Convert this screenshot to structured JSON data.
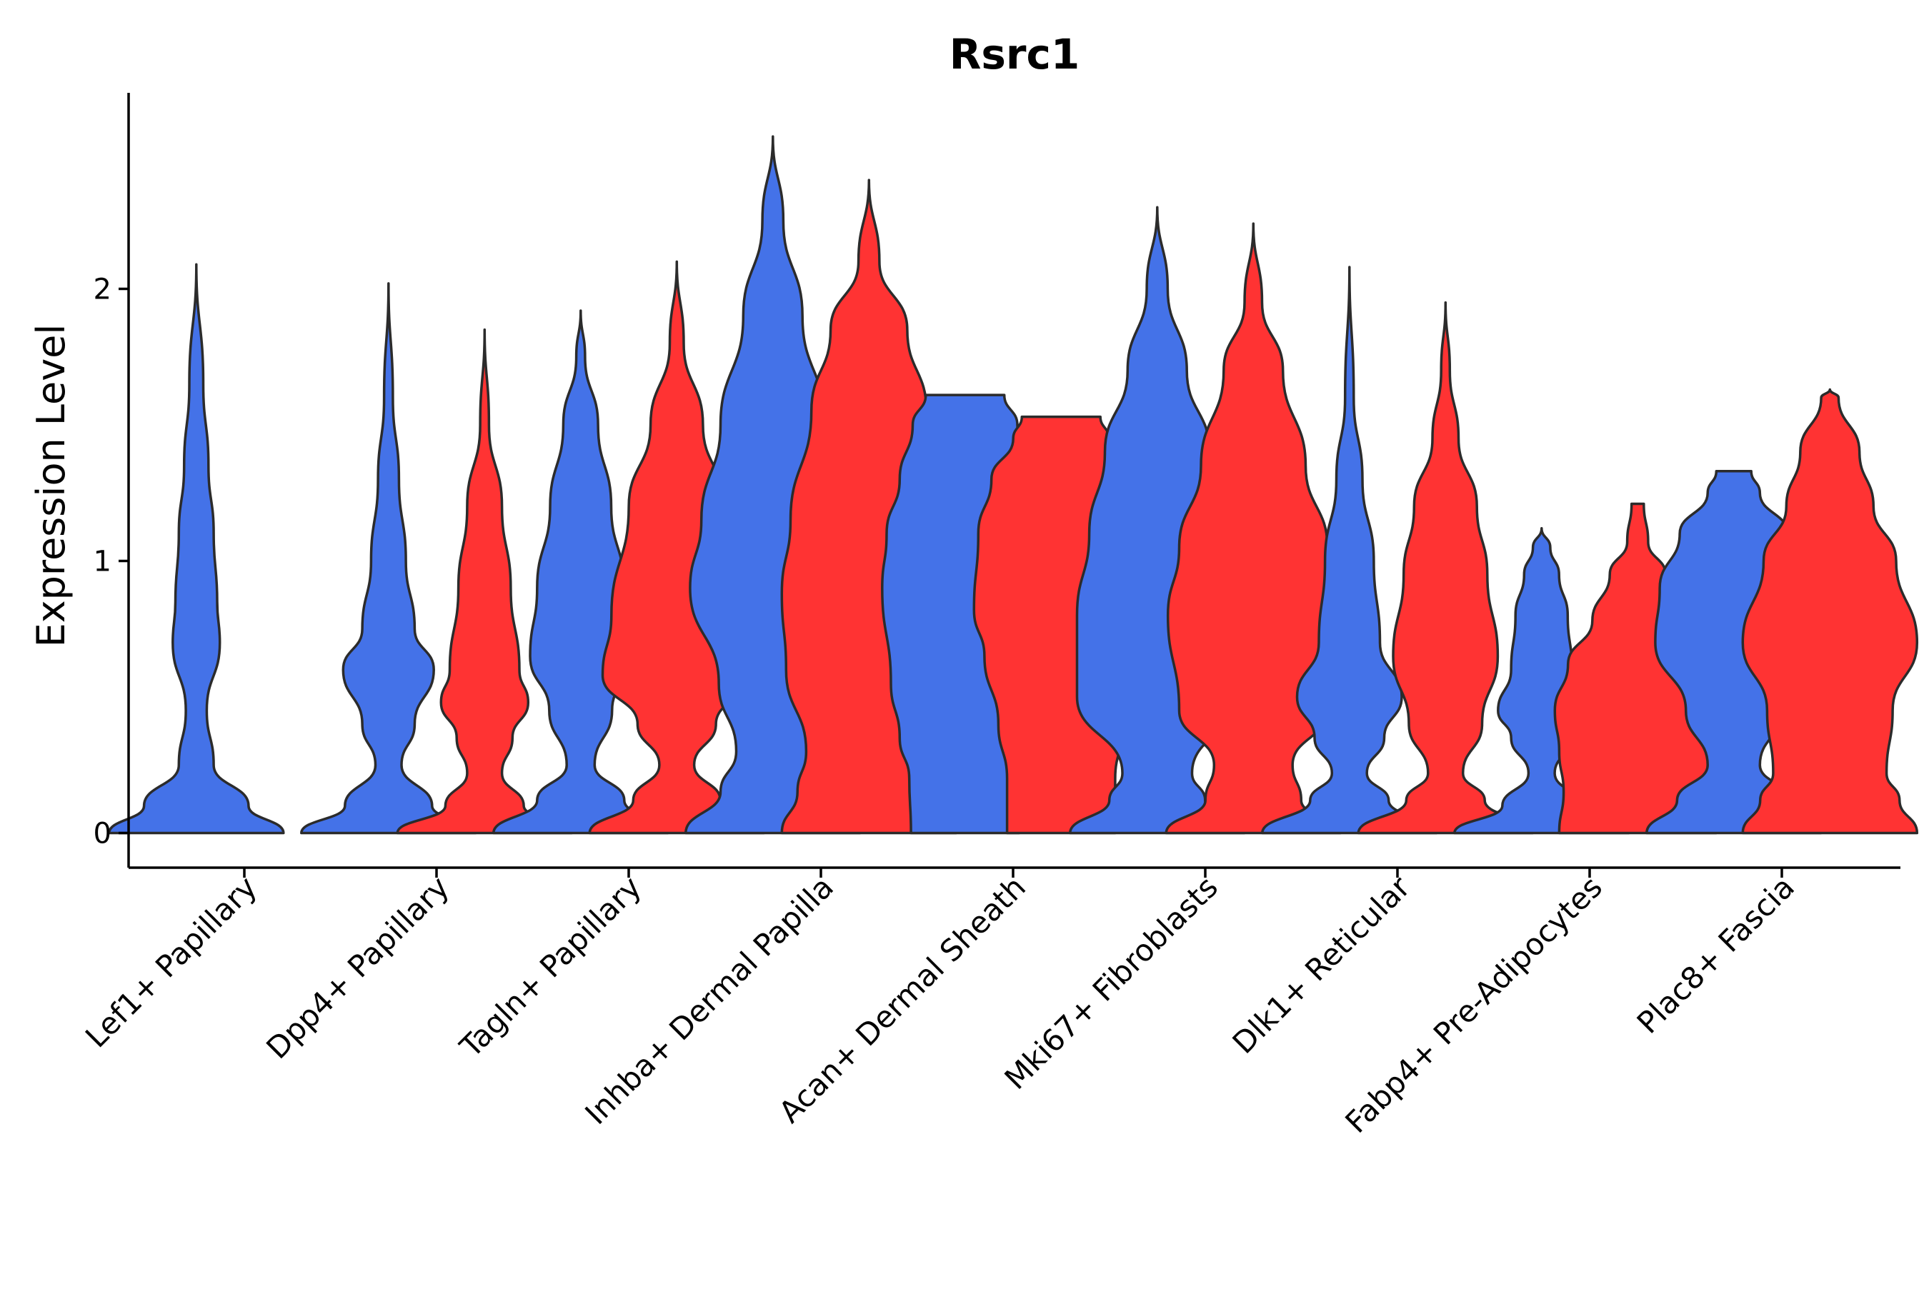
{
  "chart_data": {
    "type": "violin",
    "title": "Rsrc1",
    "xlabel": "",
    "ylabel": "Expression Level",
    "ylim": [
      -0.13,
      2.7
    ],
    "yticks": [
      0,
      1,
      2
    ],
    "grid": false,
    "legend": "none",
    "colors": {
      "group_1": "#4472E8",
      "group_2": "#FF3333",
      "outline": "#2b2b2b"
    },
    "categories": [
      "Lef1+ Papillary",
      "Dpp4+ Papillary",
      "Tagln+ Papillary",
      "Inhba+ Dermal Papilla",
      "Acan+ Dermal Sheath",
      "Mki67+ Fibroblasts",
      "Dlk1+ Reticular",
      "Fabp4+ Pre-Adipocytes",
      "Plac8+ Fascia"
    ],
    "violins": [
      {
        "category": "Lef1+ Papillary",
        "group": 1,
        "max": 2.09,
        "profile": [
          [
            0,
            1.0
          ],
          [
            0.1,
            0.6
          ],
          [
            0.25,
            0.2
          ],
          [
            0.45,
            0.12
          ],
          [
            0.7,
            0.27
          ],
          [
            0.85,
            0.24
          ],
          [
            1.1,
            0.2
          ],
          [
            1.35,
            0.14
          ],
          [
            1.65,
            0.08
          ],
          [
            2.09,
            0.0
          ]
        ]
      },
      {
        "category": "Dpp4+ Papillary",
        "group": 1,
        "max": 2.02,
        "profile": [
          [
            0,
            1.0
          ],
          [
            0.1,
            0.5
          ],
          [
            0.25,
            0.15
          ],
          [
            0.4,
            0.3
          ],
          [
            0.6,
            0.52
          ],
          [
            0.75,
            0.3
          ],
          [
            1.0,
            0.2
          ],
          [
            1.3,
            0.12
          ],
          [
            1.6,
            0.05
          ],
          [
            2.02,
            0.0
          ]
        ]
      },
      {
        "category": "Dpp4+ Papillary",
        "group": 2,
        "max": 1.85,
        "profile": [
          [
            0,
            1.0
          ],
          [
            0.1,
            0.45
          ],
          [
            0.22,
            0.2
          ],
          [
            0.35,
            0.32
          ],
          [
            0.48,
            0.5
          ],
          [
            0.6,
            0.4
          ],
          [
            0.9,
            0.3
          ],
          [
            1.2,
            0.2
          ],
          [
            1.5,
            0.05
          ],
          [
            1.85,
            0.0
          ]
        ]
      },
      {
        "category": "Tagln+ Papillary",
        "group": 1,
        "max": 1.92,
        "profile": [
          [
            0,
            1.0
          ],
          [
            0.12,
            0.5
          ],
          [
            0.25,
            0.16
          ],
          [
            0.45,
            0.36
          ],
          [
            0.65,
            0.58
          ],
          [
            0.9,
            0.5
          ],
          [
            1.2,
            0.35
          ],
          [
            1.5,
            0.2
          ],
          [
            1.75,
            0.05
          ],
          [
            1.92,
            0.0
          ]
        ]
      },
      {
        "category": "Tagln+ Papillary",
        "group": 2,
        "max": 2.1,
        "profile": [
          [
            0,
            1.0
          ],
          [
            0.12,
            0.5
          ],
          [
            0.25,
            0.2
          ],
          [
            0.4,
            0.45
          ],
          [
            0.58,
            0.85
          ],
          [
            0.8,
            0.75
          ],
          [
            1.2,
            0.55
          ],
          [
            1.5,
            0.3
          ],
          [
            1.8,
            0.08
          ],
          [
            2.1,
            0.0
          ]
        ]
      },
      {
        "category": "Inhba+ Dermal Papilla",
        "group": 1,
        "max": 2.56,
        "profile": [
          [
            0,
            1.0
          ],
          [
            0.15,
            0.6
          ],
          [
            0.3,
            0.42
          ],
          [
            0.55,
            0.62
          ],
          [
            0.9,
            0.95
          ],
          [
            1.15,
            0.82
          ],
          [
            1.5,
            0.6
          ],
          [
            1.9,
            0.34
          ],
          [
            2.25,
            0.12
          ],
          [
            2.56,
            0.0
          ]
        ]
      },
      {
        "category": "Inhba+ Dermal Papilla",
        "group": 2,
        "max": 2.4,
        "profile": [
          [
            0,
            1.0
          ],
          [
            0.15,
            0.82
          ],
          [
            0.3,
            0.72
          ],
          [
            0.6,
            0.95
          ],
          [
            0.88,
            1.0
          ],
          [
            1.15,
            0.9
          ],
          [
            1.55,
            0.66
          ],
          [
            1.85,
            0.44
          ],
          [
            2.1,
            0.12
          ],
          [
            2.4,
            0.0
          ]
        ]
      },
      {
        "category": "Acan+ Dermal Sheath",
        "group": 1,
        "max": 1.61,
        "profile": [
          [
            0,
            0.62
          ],
          [
            0.2,
            0.64
          ],
          [
            0.35,
            0.75
          ],
          [
            0.55,
            0.85
          ],
          [
            0.9,
            0.95
          ],
          [
            1.1,
            0.9
          ],
          [
            1.3,
            0.75
          ],
          [
            1.5,
            0.6
          ],
          [
            1.61,
            0.45
          ],
          [
            1.61,
            0.0
          ]
        ]
      },
      {
        "category": "Acan+ Dermal Sheath",
        "group": 2,
        "max": 1.53,
        "profile": [
          [
            0,
            0.62
          ],
          [
            0.2,
            0.62
          ],
          [
            0.4,
            0.72
          ],
          [
            0.65,
            0.88
          ],
          [
            0.82,
            1.0
          ],
          [
            1.1,
            0.95
          ],
          [
            1.3,
            0.8
          ],
          [
            1.45,
            0.55
          ],
          [
            1.53,
            0.45
          ],
          [
            1.53,
            0.0
          ]
        ]
      },
      {
        "category": "Mki67+ Fibroblasts",
        "group": 1,
        "max": 2.3,
        "profile": [
          [
            0,
            1.0
          ],
          [
            0.12,
            0.55
          ],
          [
            0.22,
            0.4
          ],
          [
            0.5,
            0.92
          ],
          [
            0.8,
            0.92
          ],
          [
            1.1,
            0.78
          ],
          [
            1.4,
            0.6
          ],
          [
            1.7,
            0.34
          ],
          [
            2.0,
            0.12
          ],
          [
            2.3,
            0.0
          ]
        ]
      },
      {
        "category": "Mki67+ Fibroblasts",
        "group": 2,
        "max": 2.24,
        "profile": [
          [
            0,
            1.0
          ],
          [
            0.12,
            0.55
          ],
          [
            0.25,
            0.45
          ],
          [
            0.45,
            0.85
          ],
          [
            0.8,
            0.98
          ],
          [
            1.05,
            0.85
          ],
          [
            1.35,
            0.6
          ],
          [
            1.7,
            0.34
          ],
          [
            1.95,
            0.1
          ],
          [
            2.24,
            0.0
          ]
        ]
      },
      {
        "category": "Dlk1+ Reticular",
        "group": 1,
        "max": 2.08,
        "profile": [
          [
            0,
            1.0
          ],
          [
            0.12,
            0.45
          ],
          [
            0.22,
            0.2
          ],
          [
            0.35,
            0.4
          ],
          [
            0.5,
            0.6
          ],
          [
            0.7,
            0.35
          ],
          [
            1.0,
            0.28
          ],
          [
            1.3,
            0.15
          ],
          [
            1.6,
            0.05
          ],
          [
            2.08,
            0.0
          ]
        ]
      },
      {
        "category": "Dlk1+ Reticular",
        "group": 2,
        "max": 1.95,
        "profile": [
          [
            0,
            1.0
          ],
          [
            0.12,
            0.45
          ],
          [
            0.22,
            0.2
          ],
          [
            0.4,
            0.42
          ],
          [
            0.65,
            0.6
          ],
          [
            0.95,
            0.48
          ],
          [
            1.2,
            0.36
          ],
          [
            1.45,
            0.15
          ],
          [
            1.7,
            0.05
          ],
          [
            1.95,
            0.0
          ]
        ]
      },
      {
        "category": "Fabp4+ Pre-Adipocytes",
        "group": 1,
        "max": 1.12,
        "profile": [
          [
            0,
            1.0
          ],
          [
            0.1,
            0.45
          ],
          [
            0.22,
            0.15
          ],
          [
            0.35,
            0.35
          ],
          [
            0.45,
            0.5
          ],
          [
            0.6,
            0.35
          ],
          [
            0.8,
            0.3
          ],
          [
            0.95,
            0.2
          ],
          [
            1.05,
            0.1
          ],
          [
            1.12,
            0.0
          ]
        ]
      },
      {
        "category": "Fabp4+ Pre-Adipocytes",
        "group": 2,
        "max": 1.21,
        "profile": [
          [
            0,
            0.9
          ],
          [
            0.15,
            0.85
          ],
          [
            0.3,
            0.9
          ],
          [
            0.45,
            0.95
          ],
          [
            0.62,
            0.8
          ],
          [
            0.78,
            0.52
          ],
          [
            0.95,
            0.32
          ],
          [
            1.07,
            0.12
          ],
          [
            1.21,
            0.07
          ],
          [
            1.21,
            0.0
          ]
        ]
      },
      {
        "category": "Plac8+ Fascia",
        "group": 1,
        "max": 1.33,
        "profile": [
          [
            0,
            1.0
          ],
          [
            0.12,
            0.65
          ],
          [
            0.25,
            0.3
          ],
          [
            0.45,
            0.55
          ],
          [
            0.7,
            0.9
          ],
          [
            0.9,
            0.85
          ],
          [
            1.1,
            0.62
          ],
          [
            1.25,
            0.3
          ],
          [
            1.33,
            0.2
          ],
          [
            1.33,
            0.0
          ]
        ]
      },
      {
        "category": "Plac8+ Fascia",
        "group": 2,
        "max": 1.63,
        "profile": [
          [
            0,
            1.0
          ],
          [
            0.12,
            0.8
          ],
          [
            0.22,
            0.65
          ],
          [
            0.45,
            0.72
          ],
          [
            0.7,
            1.0
          ],
          [
            1.0,
            0.76
          ],
          [
            1.2,
            0.5
          ],
          [
            1.4,
            0.34
          ],
          [
            1.6,
            0.1
          ],
          [
            1.63,
            0.0
          ]
        ]
      }
    ]
  }
}
